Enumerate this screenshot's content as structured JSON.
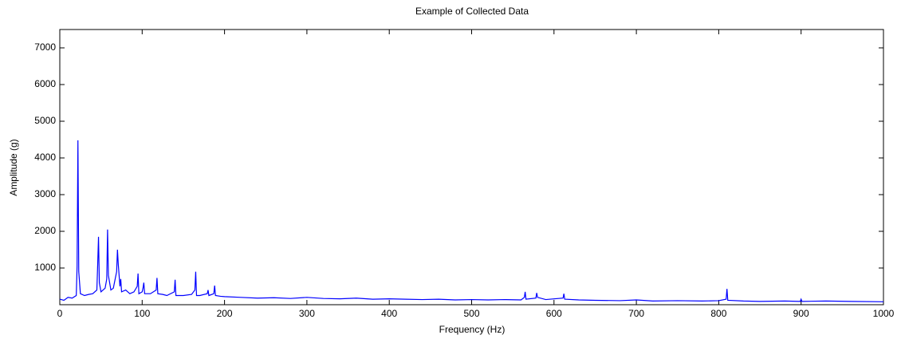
{
  "chart_data": {
    "type": "line",
    "title": "Example of Collected Data",
    "x_label": "Frequency (Hz)",
    "y_label": "Amplitude (g)",
    "xlim": [
      0,
      1000
    ],
    "xticks": [
      0,
      100,
      200,
      300,
      400,
      500,
      600,
      700,
      800,
      900,
      1000
    ],
    "ylim": [
      0,
      7500
    ],
    "yticks": [
      1000,
      2000,
      3000,
      4000,
      5000,
      6000,
      7000
    ],
    "grid": false,
    "series": [
      {
        "color": "#0000ff",
        "x": [
          0,
          5,
          10,
          15,
          20,
          21,
          22,
          23,
          25,
          30,
          35,
          40,
          45,
          46,
          47,
          48,
          50,
          55,
          57,
          58,
          59,
          62,
          65,
          69,
          70,
          71,
          73,
          74,
          75,
          80,
          85,
          90,
          94,
          95,
          96,
          100,
          101,
          102,
          103,
          110,
          117,
          118,
          119,
          125,
          130,
          139,
          140,
          141,
          150,
          160,
          164,
          165,
          166,
          170,
          179,
          180,
          181,
          187,
          188,
          189,
          195,
          200,
          220,
          240,
          260,
          280,
          300,
          320,
          340,
          360,
          380,
          400,
          420,
          440,
          460,
          480,
          500,
          520,
          540,
          560,
          564,
          565,
          566,
          578,
          579,
          580,
          590,
          611,
          612,
          613,
          630,
          650,
          680,
          700,
          720,
          750,
          780,
          800,
          809,
          810,
          811,
          830,
          850,
          880,
          899,
          900,
          901,
          930,
          960,
          1000
        ],
        "values": [
          150,
          120,
          200,
          180,
          250,
          1050,
          4480,
          900,
          300,
          250,
          280,
          300,
          400,
          1100,
          1850,
          600,
          350,
          450,
          700,
          2050,
          800,
          400,
          450,
          900,
          1500,
          1100,
          500,
          700,
          350,
          400,
          300,
          350,
          500,
          850,
          300,
          350,
          450,
          600,
          300,
          300,
          400,
          730,
          300,
          280,
          250,
          350,
          680,
          250,
          250,
          280,
          400,
          900,
          250,
          250,
          300,
          400,
          250,
          300,
          520,
          250,
          230,
          220,
          200,
          180,
          190,
          170,
          200,
          170,
          160,
          180,
          150,
          160,
          150,
          140,
          150,
          130,
          140,
          130,
          140,
          130,
          200,
          350,
          150,
          180,
          320,
          200,
          140,
          180,
          300,
          150,
          130,
          120,
          110,
          130,
          100,
          110,
          100,
          110,
          150,
          430,
          120,
          100,
          90,
          100,
          90,
          150,
          90,
          100,
          90,
          80
        ]
      }
    ]
  }
}
